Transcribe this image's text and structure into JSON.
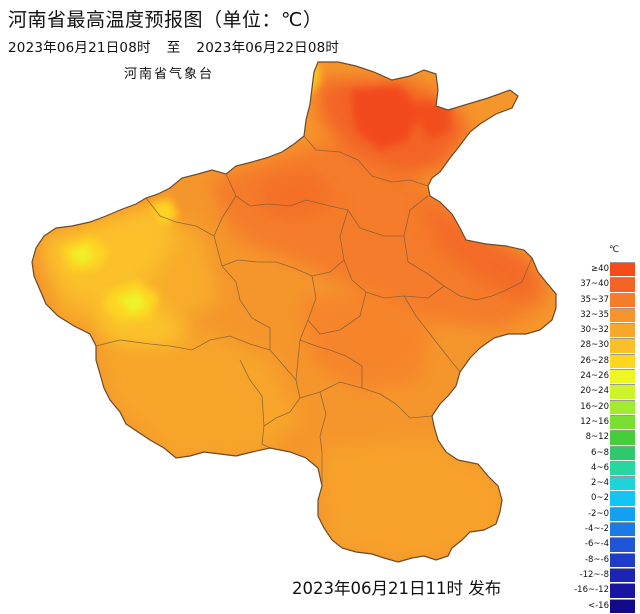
{
  "map": {
    "title": "河南省最高温度预报图（单位：℃）",
    "period_start": "2023年06月21日08时",
    "period_separator": "至",
    "period_end": "2023年06月22日08时",
    "agency": "河南省气象台",
    "issued": "2023年06月21日11时 发布"
  },
  "legend": {
    "unit": "℃",
    "items": [
      {
        "label": "≥40",
        "color": "#f44b1b"
      },
      {
        "label": "37~40",
        "color": "#f36326"
      },
      {
        "label": "35~37",
        "color": "#f57d29"
      },
      {
        "label": "32~35",
        "color": "#f5942c"
      },
      {
        "label": "30~32",
        "color": "#f7a72c"
      },
      {
        "label": "28~30",
        "color": "#fbbf2a"
      },
      {
        "label": "26~28",
        "color": "#fdd71e"
      },
      {
        "label": "24~26",
        "color": "#eef624"
      },
      {
        "label": "20~24",
        "color": "#cdf42a"
      },
      {
        "label": "16~20",
        "color": "#a2ec30"
      },
      {
        "label": "12~16",
        "color": "#79e032"
      },
      {
        "label": "8~12",
        "color": "#44ce3a"
      },
      {
        "label": "6~8",
        "color": "#2ec96a"
      },
      {
        "label": "4~6",
        "color": "#28d6a0"
      },
      {
        "label": "2~4",
        "color": "#20d3d6"
      },
      {
        "label": "0~2",
        "color": "#14c4f2"
      },
      {
        "label": "-2~0",
        "color": "#13a0f0"
      },
      {
        "label": "-4~-2",
        "color": "#1a7ae6"
      },
      {
        "label": "-6~-4",
        "color": "#2056d6"
      },
      {
        "label": "-8~-6",
        "color": "#1e3cc8"
      },
      {
        "label": "-12~-8",
        "color": "#1a25b4"
      },
      {
        "label": "-16~-12",
        "color": "#1816a0"
      },
      {
        "label": "<-16",
        "color": "#120a86"
      }
    ]
  }
}
